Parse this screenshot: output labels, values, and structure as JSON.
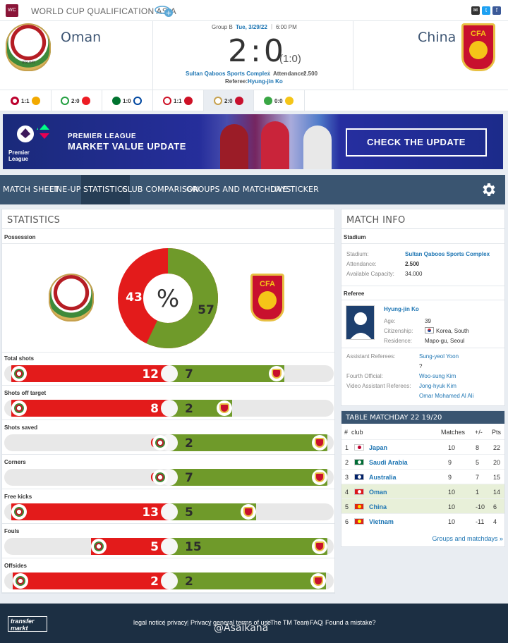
{
  "header": {
    "competition": "WORLD CUP QUALIFICATION ASIA"
  },
  "match": {
    "home_name": "Oman",
    "away_name": "China",
    "group": "Group B",
    "date": "Tue, 3/29/22",
    "time": "6:00 PM",
    "score": "2:0",
    "halftime": "(1:0)",
    "stadium": "Sultan Qaboos Sports Complex",
    "attendance_label": "Attendance:",
    "attendance": "2.500",
    "referee_label": "Referee:",
    "referee": "Hyung-jin Ko",
    "home_crest_text": "ofa.om",
    "away_crest_text": "CFA"
  },
  "other_results": [
    "1:1",
    "2:0",
    "1:0",
    "1:1",
    "2:0",
    "0:0"
  ],
  "banner": {
    "line1": "PREMIER LEAGUE",
    "line2": "MARKET VALUE UPDATE",
    "cta": "CHECK THE UPDATE",
    "logo": "Premier League"
  },
  "nav": {
    "tabs": [
      "MATCH SHEET",
      "LINE-UPS",
      "STATISTICS",
      "CLUB COMPARISON",
      "GROUPS AND MATCHDAYS",
      "LIVE TICKER"
    ],
    "active": "STATISTICS"
  },
  "statistics": {
    "title": "STATISTICS",
    "possession": {
      "label": "Possession",
      "home": 43,
      "away": 57,
      "symbol": "%"
    },
    "rows": [
      {
        "label": "Total shots",
        "home": 12,
        "away": 7
      },
      {
        "label": "Shots off target",
        "home": 8,
        "away": 2
      },
      {
        "label": "Shots saved",
        "home": 0,
        "away": 2
      },
      {
        "label": "Corners",
        "home": 0,
        "away": 7
      },
      {
        "label": "Free kicks",
        "home": 13,
        "away": 5
      },
      {
        "label": "Fouls",
        "home": 5,
        "away": 15
      },
      {
        "label": "Offsides",
        "home": 2,
        "away": 2
      }
    ]
  },
  "match_info": {
    "title": "MATCH INFO",
    "stadium_section": "Stadium",
    "stadium_label": "Stadium:",
    "stadium": "Sultan Qaboos Sports Complex",
    "attendance_label": "Attendance:",
    "attendance": "2.500",
    "capacity_label": "Available Capacity:",
    "capacity": "34.000",
    "referee_section": "Referee",
    "ref_name": "Hyung-jin Ko",
    "age_label": "Age:",
    "age": "39",
    "citizenship_label": "Citizenship:",
    "citizenship": "Korea, South",
    "residence_label": "Residence:",
    "residence": "Mapo-gu, Seoul",
    "assistants_label": "Assistant Referees:",
    "assistant1": "Sung-yeol Yoon",
    "assistant2": "?",
    "fourth_label": "Fourth Official:",
    "fourth": "Woo-sung Kim",
    "var_label": "Video Assistant Referees:",
    "var1": "Jong-hyuk Kim",
    "var2": "Omar Mohamed Al Ali"
  },
  "table": {
    "title": "TABLE MATCHDAY 22 19/20",
    "headers": {
      "rank": "#",
      "club": "club",
      "matches": "Matches",
      "diff": "+/-",
      "pts": "Pts"
    },
    "rows": [
      {
        "rank": "1",
        "club": "Japan",
        "matches": "10",
        "diff": "8",
        "pts": "22",
        "flag": "#ffffff",
        "dot": "#bc002d"
      },
      {
        "rank": "2",
        "club": "Saudi Arabia",
        "matches": "9",
        "diff": "5",
        "pts": "20",
        "flag": "#006c35",
        "dot": "#ffffff"
      },
      {
        "rank": "3",
        "club": "Australia",
        "matches": "9",
        "diff": "7",
        "pts": "15",
        "flag": "#012169",
        "dot": "#ffffff"
      },
      {
        "rank": "4",
        "club": "Oman",
        "matches": "10",
        "diff": "1",
        "pts": "14",
        "flag": "#db161b",
        "dot": "#ffffff"
      },
      {
        "rank": "5",
        "club": "China",
        "matches": "10",
        "diff": "-10",
        "pts": "6",
        "flag": "#de2910",
        "dot": "#ffde00"
      },
      {
        "rank": "6",
        "club": "Vietnam",
        "matches": "10",
        "diff": "-11",
        "pts": "4",
        "flag": "#da251d",
        "dot": "#ffff00"
      }
    ],
    "more": "Groups and matchdays »"
  },
  "footer": {
    "logo": "transfer markt",
    "links": [
      "legal notice",
      "privacy",
      "Privacy",
      "general terms of use",
      "The TM Team",
      "FAQ",
      "Found a mistake?"
    ],
    "watermark": "@Asaikana"
  },
  "colors": {
    "home": "#e31b1b",
    "away": "#6f9a2a",
    "nav": "#3a5571"
  }
}
